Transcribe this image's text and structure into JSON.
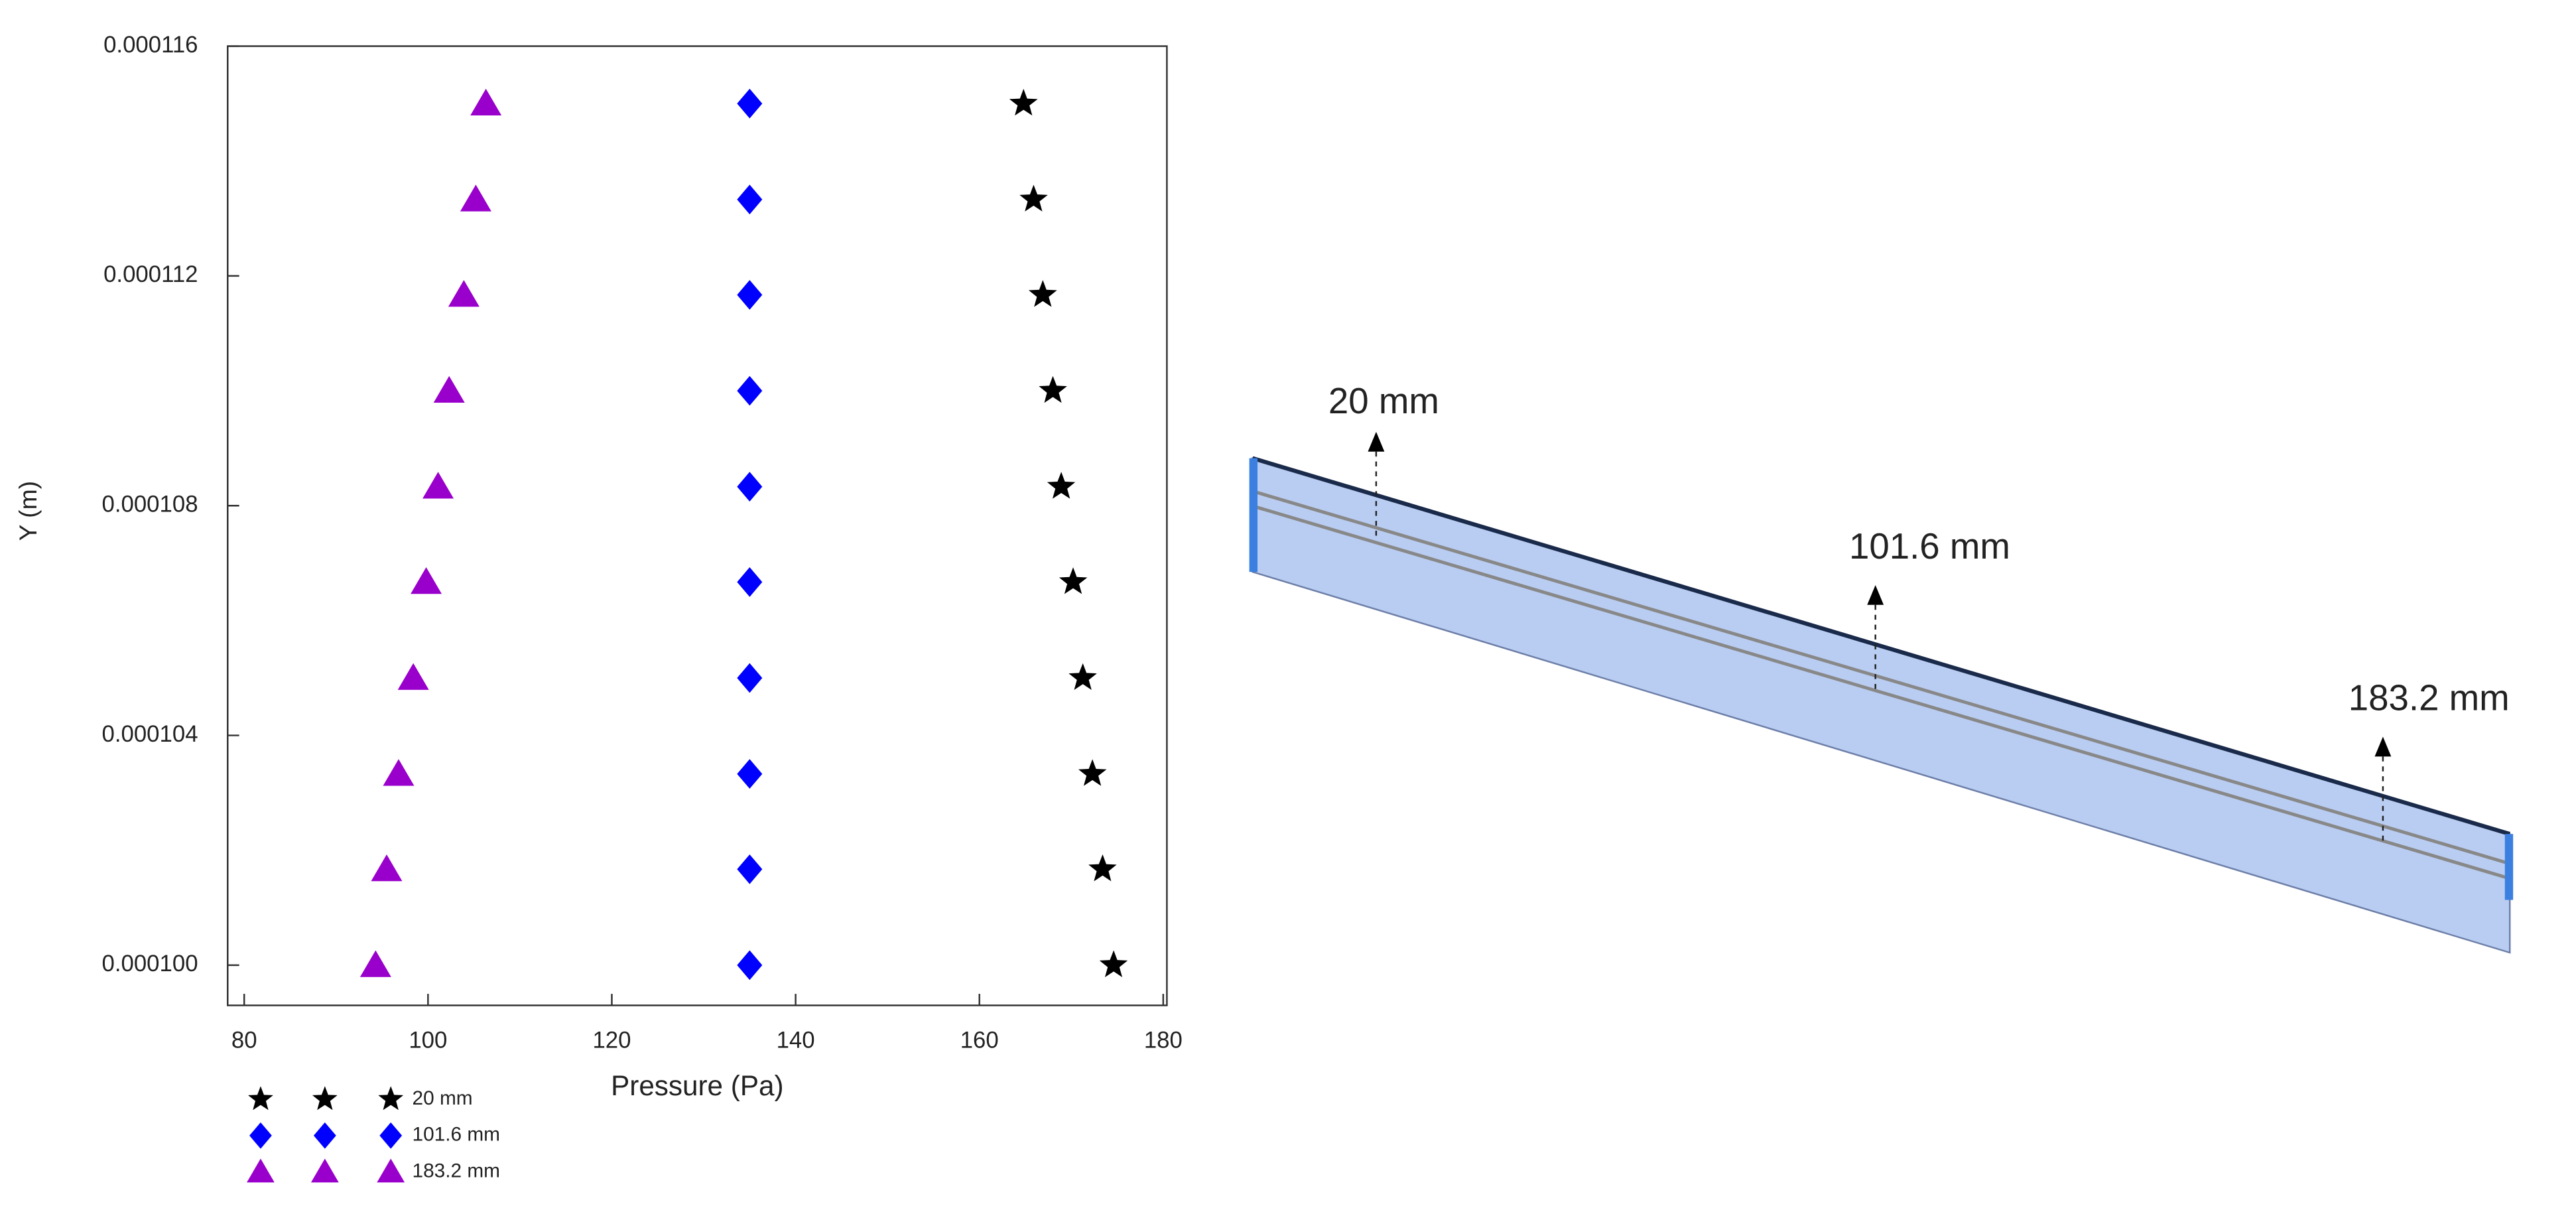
{
  "chart_data": {
    "type": "scatter",
    "xlabel": "Pressure (Pa)",
    "ylabel": "Y (m)",
    "xlim": [
      78.2,
      180.4
    ],
    "xticks": [
      80,
      100,
      120,
      140,
      160,
      180
    ],
    "ylim": [
      9.93e-05,
      0.000116
    ],
    "yticks": [
      {
        "value": 0.0001,
        "label": "0.000100"
      },
      {
        "value": 0.000104,
        "label": "0.000104"
      },
      {
        "value": 0.000108,
        "label": "0.000108"
      },
      {
        "value": 0.000112,
        "label": "0.000112"
      },
      {
        "value": 0.000116,
        "label": "0.000116"
      }
    ],
    "y": [
      0.0001,
      0.00010167,
      0.00010333,
      0.000105,
      0.00010667,
      0.00010833,
      0.00011,
      0.00011167,
      0.00011333,
      0.000115
    ],
    "series": [
      {
        "name": "20 mm",
        "color": "#000000",
        "marker": "star",
        "x": [
          174.6,
          173.4,
          172.3,
          171.25,
          170.2,
          168.9,
          168.0,
          166.9,
          165.9,
          164.8
        ]
      },
      {
        "name": "101.6 mm",
        "color": "#0000ff",
        "marker": "diamond",
        "x": [
          135,
          135,
          135,
          135,
          135,
          135,
          135,
          135,
          135,
          135
        ]
      },
      {
        "name": "183.2 mm",
        "color": "#9900cc",
        "marker": "triangle",
        "x": [
          94.3,
          95.5,
          96.8,
          98.4,
          99.8,
          101.1,
          102.3,
          103.9,
          105.2,
          106.3
        ]
      }
    ]
  },
  "diagram": {
    "labels": [
      "20 mm",
      "101.6 mm",
      "183.2 mm"
    ]
  }
}
